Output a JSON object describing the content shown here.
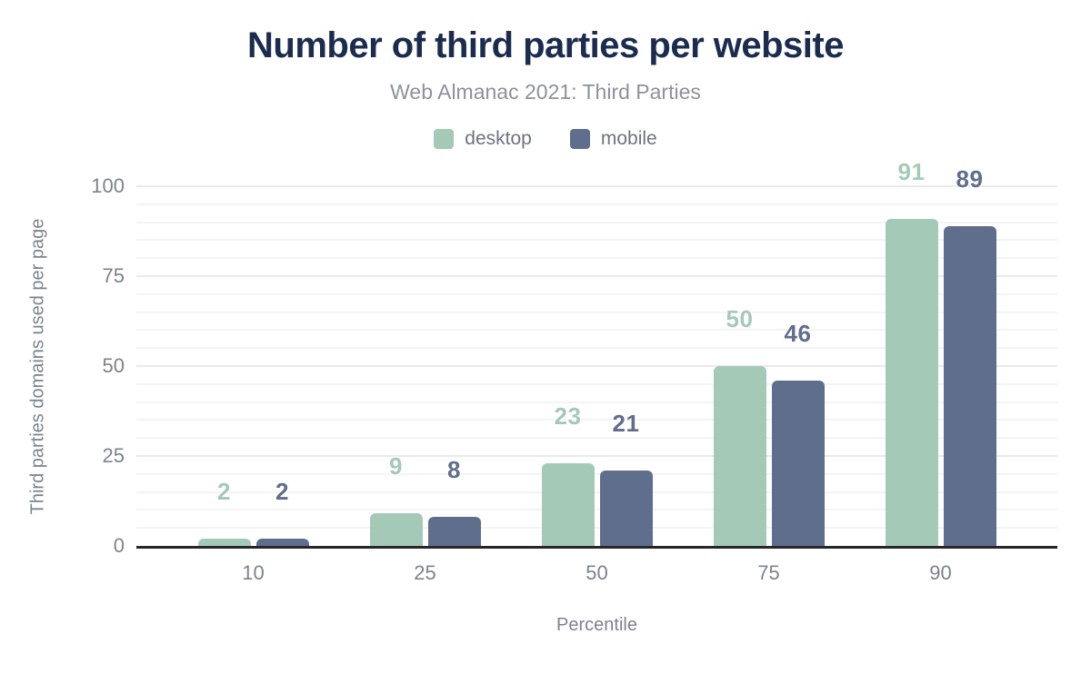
{
  "header": {
    "title": "Number of third parties per website",
    "subtitle": "Web Almanac 2021: Third Parties"
  },
  "chart_data": {
    "type": "bar",
    "title": "Number of third parties per website",
    "subtitle": "Web Almanac 2021: Third Parties",
    "categories": [
      "10",
      "25",
      "50",
      "75",
      "90"
    ],
    "series": [
      {
        "name": "desktop",
        "color": "#a5c9b7",
        "values": [
          2,
          9,
          23,
          50,
          91
        ]
      },
      {
        "name": "mobile",
        "color": "#5f6e8c",
        "values": [
          2,
          8,
          21,
          46,
          89
        ]
      }
    ],
    "xlabel": "Percentile",
    "ylabel": "Third parties domains used per page",
    "ylim": [
      0,
      100
    ],
    "yticks": [
      0,
      25,
      50,
      75,
      100
    ],
    "grid_minor_step": 5,
    "grid_major_step": 25,
    "grid": "horizontal, minor every 5, major every 25",
    "legend_position": "top",
    "data_labels": "shown above each bar, colored per series"
  },
  "colors": {
    "title_text": "#1b2c4e",
    "subtitle_text": "#8d919b",
    "legend_text": "#6c7380",
    "tick_text": "#7d828d",
    "axis_line": "#27272a",
    "gridline_minor": "#f4f4f6",
    "gridline_major": "#eaeaed",
    "desktop_series": "#a5c9b7",
    "mobile_series": "#5f6e8c",
    "background": "#ffffff"
  }
}
